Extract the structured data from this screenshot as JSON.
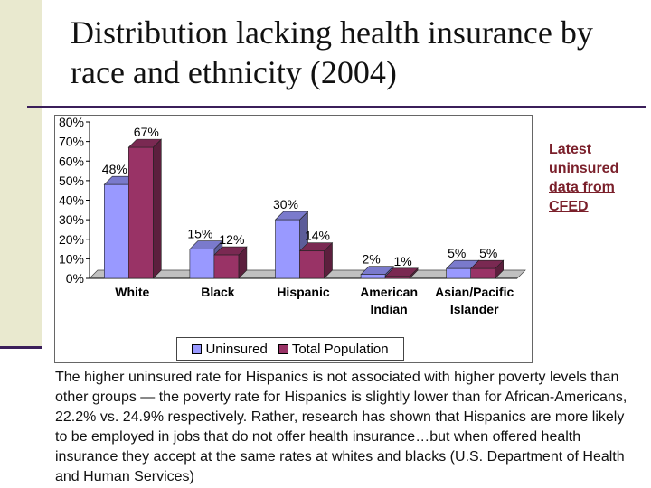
{
  "slide": {
    "title": "Distribution lacking health insurance by race and ethnicity (2004)",
    "side_note": "Latest uninsured data from CFED",
    "body": "The higher uninsured rate for Hispanics is not associated with higher poverty levels than other groups — the poverty rate for Hispanics is slightly lower than for African-Americans, 22.2% vs. 24.9% respectively. Rather, research has shown that Hispanics are more likely to be employed in jobs that do not offer health insurance…but when offered health insurance they accept at the same rates at whites and blacks (U.S. Department of Health and Human Services)"
  },
  "chart_data": {
    "type": "bar",
    "categories": [
      "White",
      "Black",
      "Hispanic",
      "American Indian",
      "Asian/Pacific Islander"
    ],
    "category_lines": [
      [
        "White"
      ],
      [
        "Black"
      ],
      [
        "Hispanic"
      ],
      [
        "American",
        "Indian"
      ],
      [
        "Asian/Pacific",
        "Islander"
      ]
    ],
    "series": [
      {
        "name": "Uninsured",
        "values": [
          48,
          15,
          30,
          2,
          5
        ],
        "labels": [
          "48%",
          "15%",
          "30%",
          "2%",
          "5%"
        ],
        "color": "#9999ff"
      },
      {
        "name": "Total Population",
        "values": [
          67,
          12,
          14,
          1,
          5
        ],
        "labels": [
          "67%",
          "12%",
          "14%",
          "1%",
          "5%"
        ],
        "color": "#993366"
      }
    ],
    "ylim": [
      0,
      80
    ],
    "yticks": [
      "0%",
      "10%",
      "20%",
      "30%",
      "40%",
      "50%",
      "60%",
      "70%",
      "80%"
    ],
    "legend_position": "bottom",
    "grid": false
  }
}
